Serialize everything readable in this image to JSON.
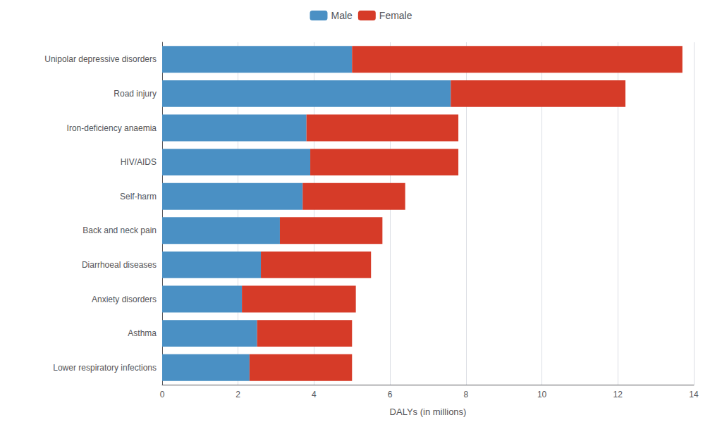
{
  "chart_data": {
    "type": "bar",
    "orientation": "horizontal",
    "stacked": true,
    "categories": [
      "Lower respiratory infections",
      "Asthma",
      "Anxiety disorders",
      "Diarrhoeal diseases",
      "Back and neck pain",
      "Self-harm",
      "HIV/AIDS",
      "Iron-deficiency anaemia",
      "Road injury",
      "Unipolar depressive disorders"
    ],
    "series": [
      {
        "name": "Male",
        "color": "#4a90c4",
        "values": [
          2.3,
          2.5,
          2.1,
          2.6,
          3.1,
          3.7,
          3.9,
          3.8,
          7.6,
          5.0
        ]
      },
      {
        "name": "Female",
        "color": "#d63b28",
        "values": [
          2.7,
          2.5,
          3.0,
          2.9,
          2.7,
          2.7,
          3.9,
          4.0,
          4.6,
          8.7
        ]
      }
    ],
    "xlabel": "DALYs (in millions)",
    "xlim": [
      0,
      14
    ],
    "xticks": [
      0,
      2,
      4,
      6,
      8,
      10,
      12,
      14
    ],
    "grid": true,
    "legend": "top"
  }
}
